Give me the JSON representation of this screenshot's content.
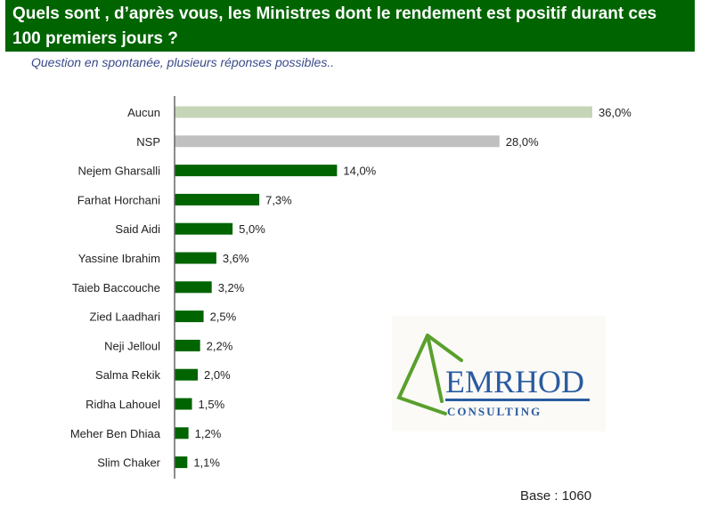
{
  "title": "Quels sont , d’après vous, les Ministres dont le rendement est positif durant ces 100 premiers jours ?",
  "subtitle": "Question en spontanée, plusieurs réponses possibles..",
  "base": "Base : 1060",
  "logo": {
    "text": "EMRHOD",
    "subtext": "CONSULTING"
  },
  "colors": {
    "banner": "#006400",
    "aucun": "#c5d5b8",
    "nsp": "#c0c0c0",
    "minister": "#006400"
  },
  "chart_data": {
    "type": "bar",
    "orientation": "horizontal",
    "categories": [
      "Aucun",
      "NSP",
      "Nejem Gharsalli",
      "Farhat Horchani",
      "Said Aidi",
      "Yassine Ibrahim",
      "Taieb Baccouche",
      "Zied Laadhari",
      "Neji Jelloul",
      "Salma Rekik",
      "Ridha Lahouel",
      "Meher Ben Dhiaa",
      "Slim Chaker"
    ],
    "values": [
      36.0,
      28.0,
      14.0,
      7.3,
      5.0,
      3.6,
      3.2,
      2.5,
      2.2,
      2.0,
      1.5,
      1.2,
      1.1
    ],
    "labels": [
      "36,0%",
      "28,0%",
      "14,0%",
      "7,3%",
      "5,0%",
      "3,6%",
      "3,2%",
      "2,5%",
      "2,2%",
      "2,0%",
      "1,5%",
      "1,2%",
      "1,1%"
    ],
    "unit": "%",
    "grid": false
  }
}
